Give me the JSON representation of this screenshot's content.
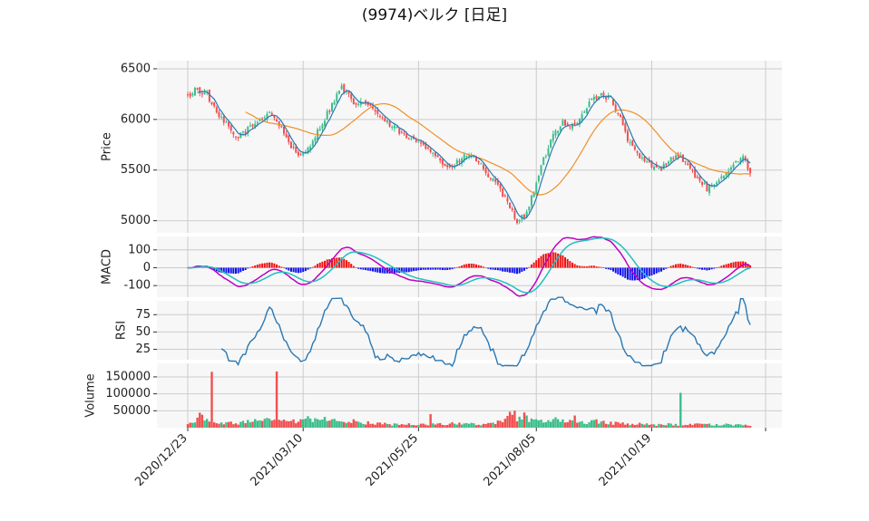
{
  "chart_data": {
    "title": "(9974)ベルク [日足]",
    "type": "candlestick",
    "x_ticks": [
      "2020/12/23",
      "2021/03/10",
      "2021/05/25",
      "2021/08/05",
      "2021/10/19"
    ],
    "colors": {
      "up": "#3cbe8a",
      "down": "#f05050",
      "ma_short": "#2878b5",
      "ma_long": "#f0902a",
      "macd": "#c000c0",
      "signal": "#20c0c0",
      "hist_pos": "#ee1111",
      "hist_neg": "#1111ee",
      "rsi": "#2878b5",
      "panel_bg": "#f7f7f7",
      "grid": "#cccccc"
    },
    "panels": [
      {
        "id": "price",
        "ylabel": "Price",
        "yticks": [
          5000,
          5500,
          6000,
          6500
        ],
        "ylim": [
          4880,
          6580
        ],
        "anchors": [
          [
            0,
            6220
          ],
          [
            3,
            6300
          ],
          [
            8,
            6250
          ],
          [
            12,
            6050
          ],
          [
            16,
            5950
          ],
          [
            20,
            5820
          ],
          [
            25,
            5900
          ],
          [
            30,
            6000
          ],
          [
            34,
            6080
          ],
          [
            38,
            5950
          ],
          [
            42,
            5780
          ],
          [
            46,
            5620
          ],
          [
            50,
            5720
          ],
          [
            55,
            5920
          ],
          [
            60,
            6150
          ],
          [
            64,
            6320
          ],
          [
            67,
            6230
          ],
          [
            70,
            6120
          ],
          [
            74,
            6180
          ],
          [
            78,
            6080
          ],
          [
            82,
            5980
          ],
          [
            87,
            5900
          ],
          [
            92,
            5800
          ],
          [
            97,
            5780
          ],
          [
            102,
            5680
          ],
          [
            106,
            5560
          ],
          [
            110,
            5520
          ],
          [
            114,
            5620
          ],
          [
            118,
            5650
          ],
          [
            122,
            5540
          ],
          [
            126,
            5420
          ],
          [
            130,
            5300
          ],
          [
            134,
            5120
          ],
          [
            137,
            5000
          ],
          [
            140,
            5050
          ],
          [
            144,
            5280
          ],
          [
            148,
            5600
          ],
          [
            152,
            5850
          ],
          [
            156,
            5980
          ],
          [
            160,
            5930
          ],
          [
            164,
            6030
          ],
          [
            168,
            6200
          ],
          [
            172,
            6250
          ],
          [
            176,
            6200
          ],
          [
            180,
            6000
          ],
          [
            184,
            5750
          ],
          [
            188,
            5620
          ],
          [
            192,
            5560
          ],
          [
            196,
            5500
          ],
          [
            200,
            5600
          ],
          [
            204,
            5650
          ],
          [
            208,
            5540
          ],
          [
            212,
            5420
          ],
          [
            216,
            5320
          ],
          [
            220,
            5350
          ],
          [
            224,
            5480
          ],
          [
            228,
            5600
          ],
          [
            232,
            5620
          ],
          [
            234,
            5450
          ]
        ],
        "volume_anchors": [
          [
            0,
            10000
          ],
          [
            3,
            18000
          ],
          [
            5,
            33000
          ],
          [
            8,
            25000
          ],
          [
            12,
            15000
          ],
          [
            16,
            14000
          ],
          [
            20,
            12000
          ],
          [
            25,
            17000
          ],
          [
            28,
            20000
          ],
          [
            32,
            22000
          ],
          [
            35,
            18000
          ],
          [
            40,
            20000
          ],
          [
            45,
            17000
          ],
          [
            50,
            20000
          ],
          [
            55,
            24000
          ],
          [
            60,
            22000
          ],
          [
            65,
            20000
          ],
          [
            70,
            18000
          ],
          [
            75,
            14000
          ],
          [
            80,
            12000
          ],
          [
            85,
            10000
          ],
          [
            90,
            9000
          ],
          [
            95,
            10000
          ],
          [
            100,
            9000
          ],
          [
            105,
            12000
          ],
          [
            110,
            12000
          ],
          [
            115,
            10000
          ],
          [
            120,
            11000
          ],
          [
            125,
            10000
          ],
          [
            130,
            22000
          ],
          [
            135,
            30000
          ],
          [
            140,
            27000
          ],
          [
            145,
            22000
          ],
          [
            150,
            25000
          ],
          [
            155,
            20000
          ],
          [
            160,
            16000
          ],
          [
            165,
            14000
          ],
          [
            170,
            18000
          ],
          [
            175,
            14000
          ],
          [
            180,
            12000
          ],
          [
            185,
            12000
          ],
          [
            190,
            10000
          ],
          [
            195,
            8000
          ],
          [
            200,
            10000
          ],
          [
            205,
            8000
          ],
          [
            210,
            9000
          ],
          [
            215,
            10000
          ],
          [
            220,
            8000
          ],
          [
            225,
            9000
          ],
          [
            230,
            8000
          ],
          [
            234,
            6000
          ]
        ],
        "volume_spikes": [
          [
            10,
            165000
          ],
          [
            37,
            166000
          ],
          [
            205,
            103000
          ],
          [
            136,
            50000
          ],
          [
            134,
            47000
          ],
          [
            140,
            45000
          ],
          [
            101,
            40000
          ],
          [
            161,
            36000
          ],
          [
            50,
            34000
          ]
        ],
        "ma_short_window": 5,
        "ma_long_window": 25
      },
      {
        "id": "macd",
        "ylabel": "MACD",
        "yticks": [
          -100,
          0,
          100
        ],
        "ylim": [
          -165,
          175
        ]
      },
      {
        "id": "rsi",
        "ylabel": "RSI",
        "yticks": [
          25,
          50,
          75
        ],
        "ylim": [
          10,
          95
        ]
      },
      {
        "id": "volume",
        "ylabel": "Volume",
        "yticks": [
          50000,
          100000,
          150000
        ],
        "ylim": [
          0,
          190000
        ]
      }
    ]
  }
}
